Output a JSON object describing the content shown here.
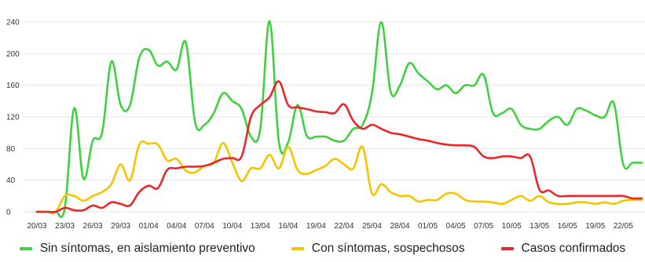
{
  "chart_data": {
    "type": "line",
    "title": "",
    "xlabel": "",
    "ylabel": "",
    "ylim": [
      0,
      250
    ],
    "yticks": [
      0,
      40,
      80,
      120,
      160,
      200,
      240
    ],
    "grid": true,
    "legend_position": "bottom",
    "x_tick_labels": [
      "20/03",
      "23/03",
      "26/03",
      "29/03",
      "01/04",
      "04/04",
      "07/04",
      "10/04",
      "13/04",
      "16/04",
      "19/04",
      "22/04",
      "25/04",
      "28/04",
      "01/05",
      "04/05",
      "07/05",
      "10/05",
      "13/05",
      "16/05",
      "19/05",
      "22/05"
    ],
    "x": [
      "20/03",
      "21/03",
      "22/03",
      "23/03",
      "24/03",
      "25/03",
      "26/03",
      "27/03",
      "28/03",
      "29/03",
      "30/03",
      "31/03",
      "01/04",
      "02/04",
      "03/04",
      "04/04",
      "05/04",
      "06/04",
      "07/04",
      "08/04",
      "09/04",
      "10/04",
      "11/04",
      "12/04",
      "13/04",
      "14/04",
      "15/04",
      "16/04",
      "17/04",
      "18/04",
      "19/04",
      "20/04",
      "21/04",
      "22/04",
      "23/04",
      "24/04",
      "25/04",
      "26/04",
      "27/04",
      "28/04",
      "29/04",
      "30/04",
      "01/05",
      "02/05",
      "03/05",
      "04/05",
      "05/05",
      "06/05",
      "07/05",
      "08/05",
      "09/05",
      "10/05",
      "11/05",
      "12/05",
      "13/05",
      "14/05",
      "15/05",
      "16/05",
      "17/05",
      "18/05",
      "19/05",
      "20/05",
      "21/05",
      "22/05",
      "23/05",
      "24/05"
    ],
    "series": [
      {
        "name": "Sin síntomas, en aislamiento preventivo",
        "color": "#3fd13f",
        "values": [
          0,
          0,
          0,
          5,
          131,
          42,
          90,
          100,
          190,
          135,
          135,
          195,
          205,
          185,
          190,
          180,
          214,
          113,
          110,
          125,
          150,
          140,
          130,
          95,
          105,
          241,
          88,
          88,
          135,
          96,
          95,
          95,
          90,
          90,
          105,
          110,
          150,
          240,
          152,
          160,
          188,
          175,
          165,
          155,
          160,
          150,
          160,
          160,
          173,
          125,
          125,
          130,
          110,
          105,
          105,
          115,
          120,
          110,
          130,
          128,
          122,
          120,
          137,
          60,
          62,
          62
        ],
        "name_key": "legend.green"
      },
      {
        "name": "Con síntomas, sospechosos",
        "color": "#f5c400",
        "values": [
          0,
          0,
          0,
          20,
          20,
          14,
          20,
          25,
          35,
          60,
          40,
          85,
          86,
          85,
          65,
          67,
          52,
          50,
          58,
          62,
          87,
          62,
          39,
          55,
          55,
          72,
          55,
          82,
          53,
          48,
          53,
          58,
          67,
          60,
          55,
          82,
          23,
          35,
          25,
          20,
          20,
          13,
          15,
          15,
          23,
          23,
          15,
          13,
          13,
          12,
          10,
          15,
          20,
          14,
          20,
          12,
          10,
          10,
          12,
          12,
          10,
          12,
          10,
          14,
          15,
          15
        ],
        "name_key": "legend.yellow"
      },
      {
        "name": "Casos confirmados",
        "color": "#e8282c",
        "values": [
          0,
          0,
          0,
          5,
          2,
          2,
          8,
          5,
          12,
          10,
          8,
          25,
          33,
          30,
          53,
          55,
          57,
          57,
          58,
          62,
          67,
          68,
          70,
          120,
          135,
          145,
          165,
          135,
          132,
          130,
          127,
          126,
          125,
          136,
          115,
          105,
          110,
          105,
          100,
          98,
          95,
          92,
          90,
          87,
          85,
          84,
          84,
          82,
          70,
          68,
          70,
          70,
          68,
          70,
          28,
          27,
          20,
          20,
          20,
          20,
          20,
          20,
          20,
          20,
          17,
          17
        ],
        "name_key": "legend.red"
      }
    ]
  },
  "legend": {
    "green": "Sin síntomas, en aislamiento preventivo",
    "yellow": "Con síntomas, sospechosos",
    "red": "Casos confirmados"
  }
}
